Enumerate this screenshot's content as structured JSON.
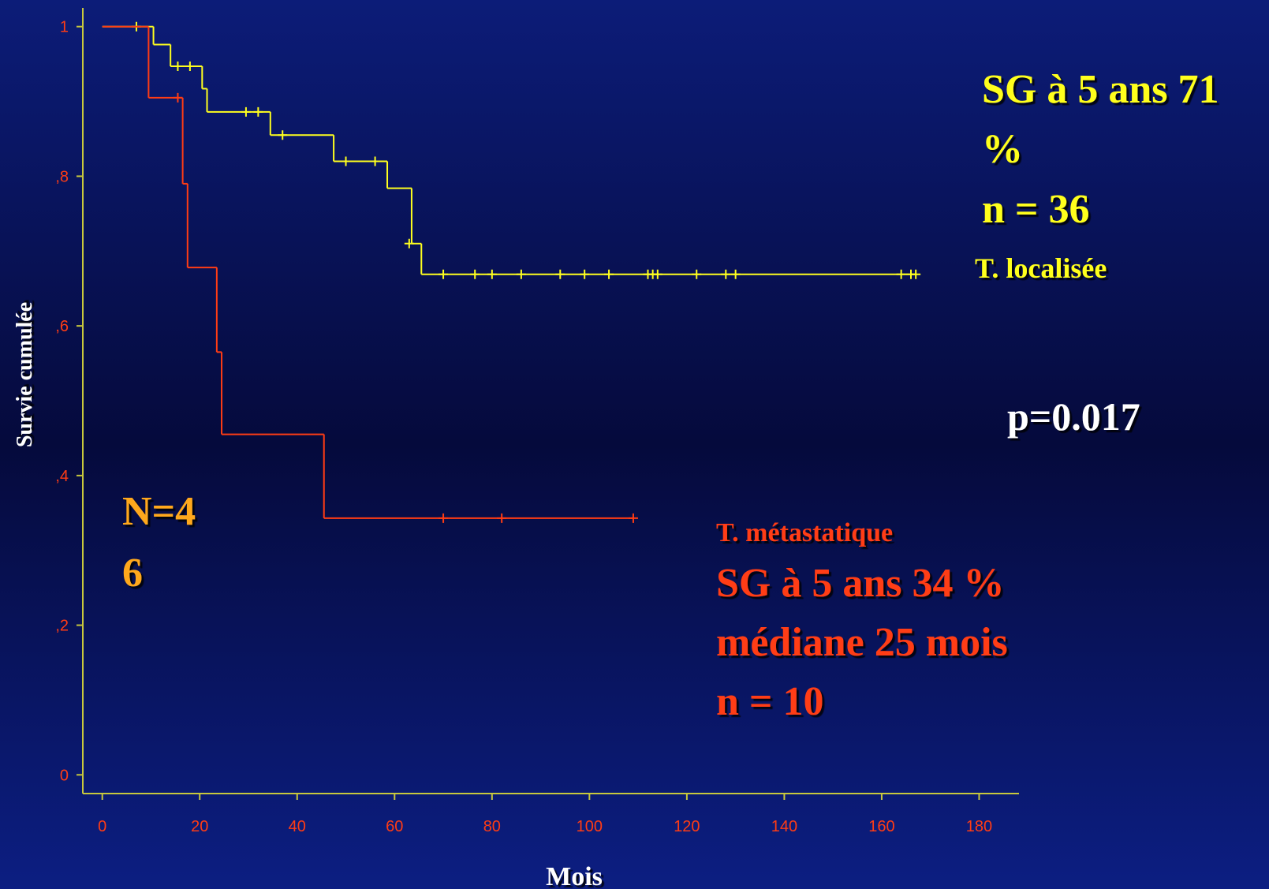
{
  "chart_data": {
    "type": "line",
    "step": "post",
    "xlabel": "Mois",
    "ylabel": "Survie cumulée",
    "xlim": [
      -4,
      183
    ],
    "ylim": [
      -0.025,
      1.025
    ],
    "xticks": [
      0,
      20,
      40,
      60,
      80,
      100,
      120,
      140,
      160,
      180
    ],
    "yticks": [
      0,
      {
        "value": 0.2,
        "label": ",2"
      },
      {
        "value": 0.4,
        "label": ",4"
      },
      {
        "value": 0.6,
        "label": ",6"
      },
      {
        "value": 0.8,
        "label": ",8"
      },
      1
    ],
    "series": [
      {
        "name": "T. localisée",
        "color": "#ffff1e",
        "x": [
          0,
          10.5,
          14,
          20.5,
          21.5,
          34.5,
          47.5,
          58.5,
          63.5,
          65.5,
          167
        ],
        "values": [
          1,
          0.976,
          0.947,
          0.917,
          0.886,
          0.855,
          0.82,
          0.784,
          0.71,
          0.669,
          0.669
        ],
        "censored": {
          "x": [
            7,
            15.5,
            18,
            29.5,
            32,
            37,
            50,
            56,
            63,
            70,
            76.5,
            80,
            86,
            94,
            99,
            104,
            112,
            113,
            114,
            122,
            128,
            130,
            164,
            166,
            167
          ],
          "values": [
            1,
            0.947,
            0.947,
            0.886,
            0.886,
            0.855,
            0.82,
            0.82,
            0.71,
            0.669,
            0.669,
            0.669,
            0.669,
            0.669,
            0.669,
            0.669,
            0.669,
            0.669,
            0.669,
            0.669,
            0.669,
            0.669,
            0.669,
            0.669,
            0.669
          ]
        }
      },
      {
        "name": "T. métastatique",
        "color": "#ff3c14",
        "x": [
          0,
          9.5,
          16.5,
          17.5,
          23.5,
          24.5,
          45.5,
          109
        ],
        "values": [
          1,
          0.905,
          0.79,
          0.678,
          0.565,
          0.455,
          0.343,
          0.343
        ],
        "censored": {
          "x": [
            15.5,
            70,
            82,
            109
          ],
          "values": [
            0.905,
            0.343,
            0.343,
            0.343
          ]
        }
      }
    ],
    "annotations": [
      {
        "lines": [
          "SG à 5 ans 71",
          "%",
          "n = 36"
        ],
        "color": "#ffff1e"
      },
      {
        "lines": [
          "p=0.017"
        ],
        "color": "#ffffff"
      },
      {
        "lines": [
          "N=4",
          "6"
        ],
        "color": "#ffa81e"
      },
      {
        "lines": [
          "SG à 5 ans 34 %",
          "médiane 25 mois",
          "n = 10"
        ],
        "color": "#ff3c14"
      }
    ]
  }
}
